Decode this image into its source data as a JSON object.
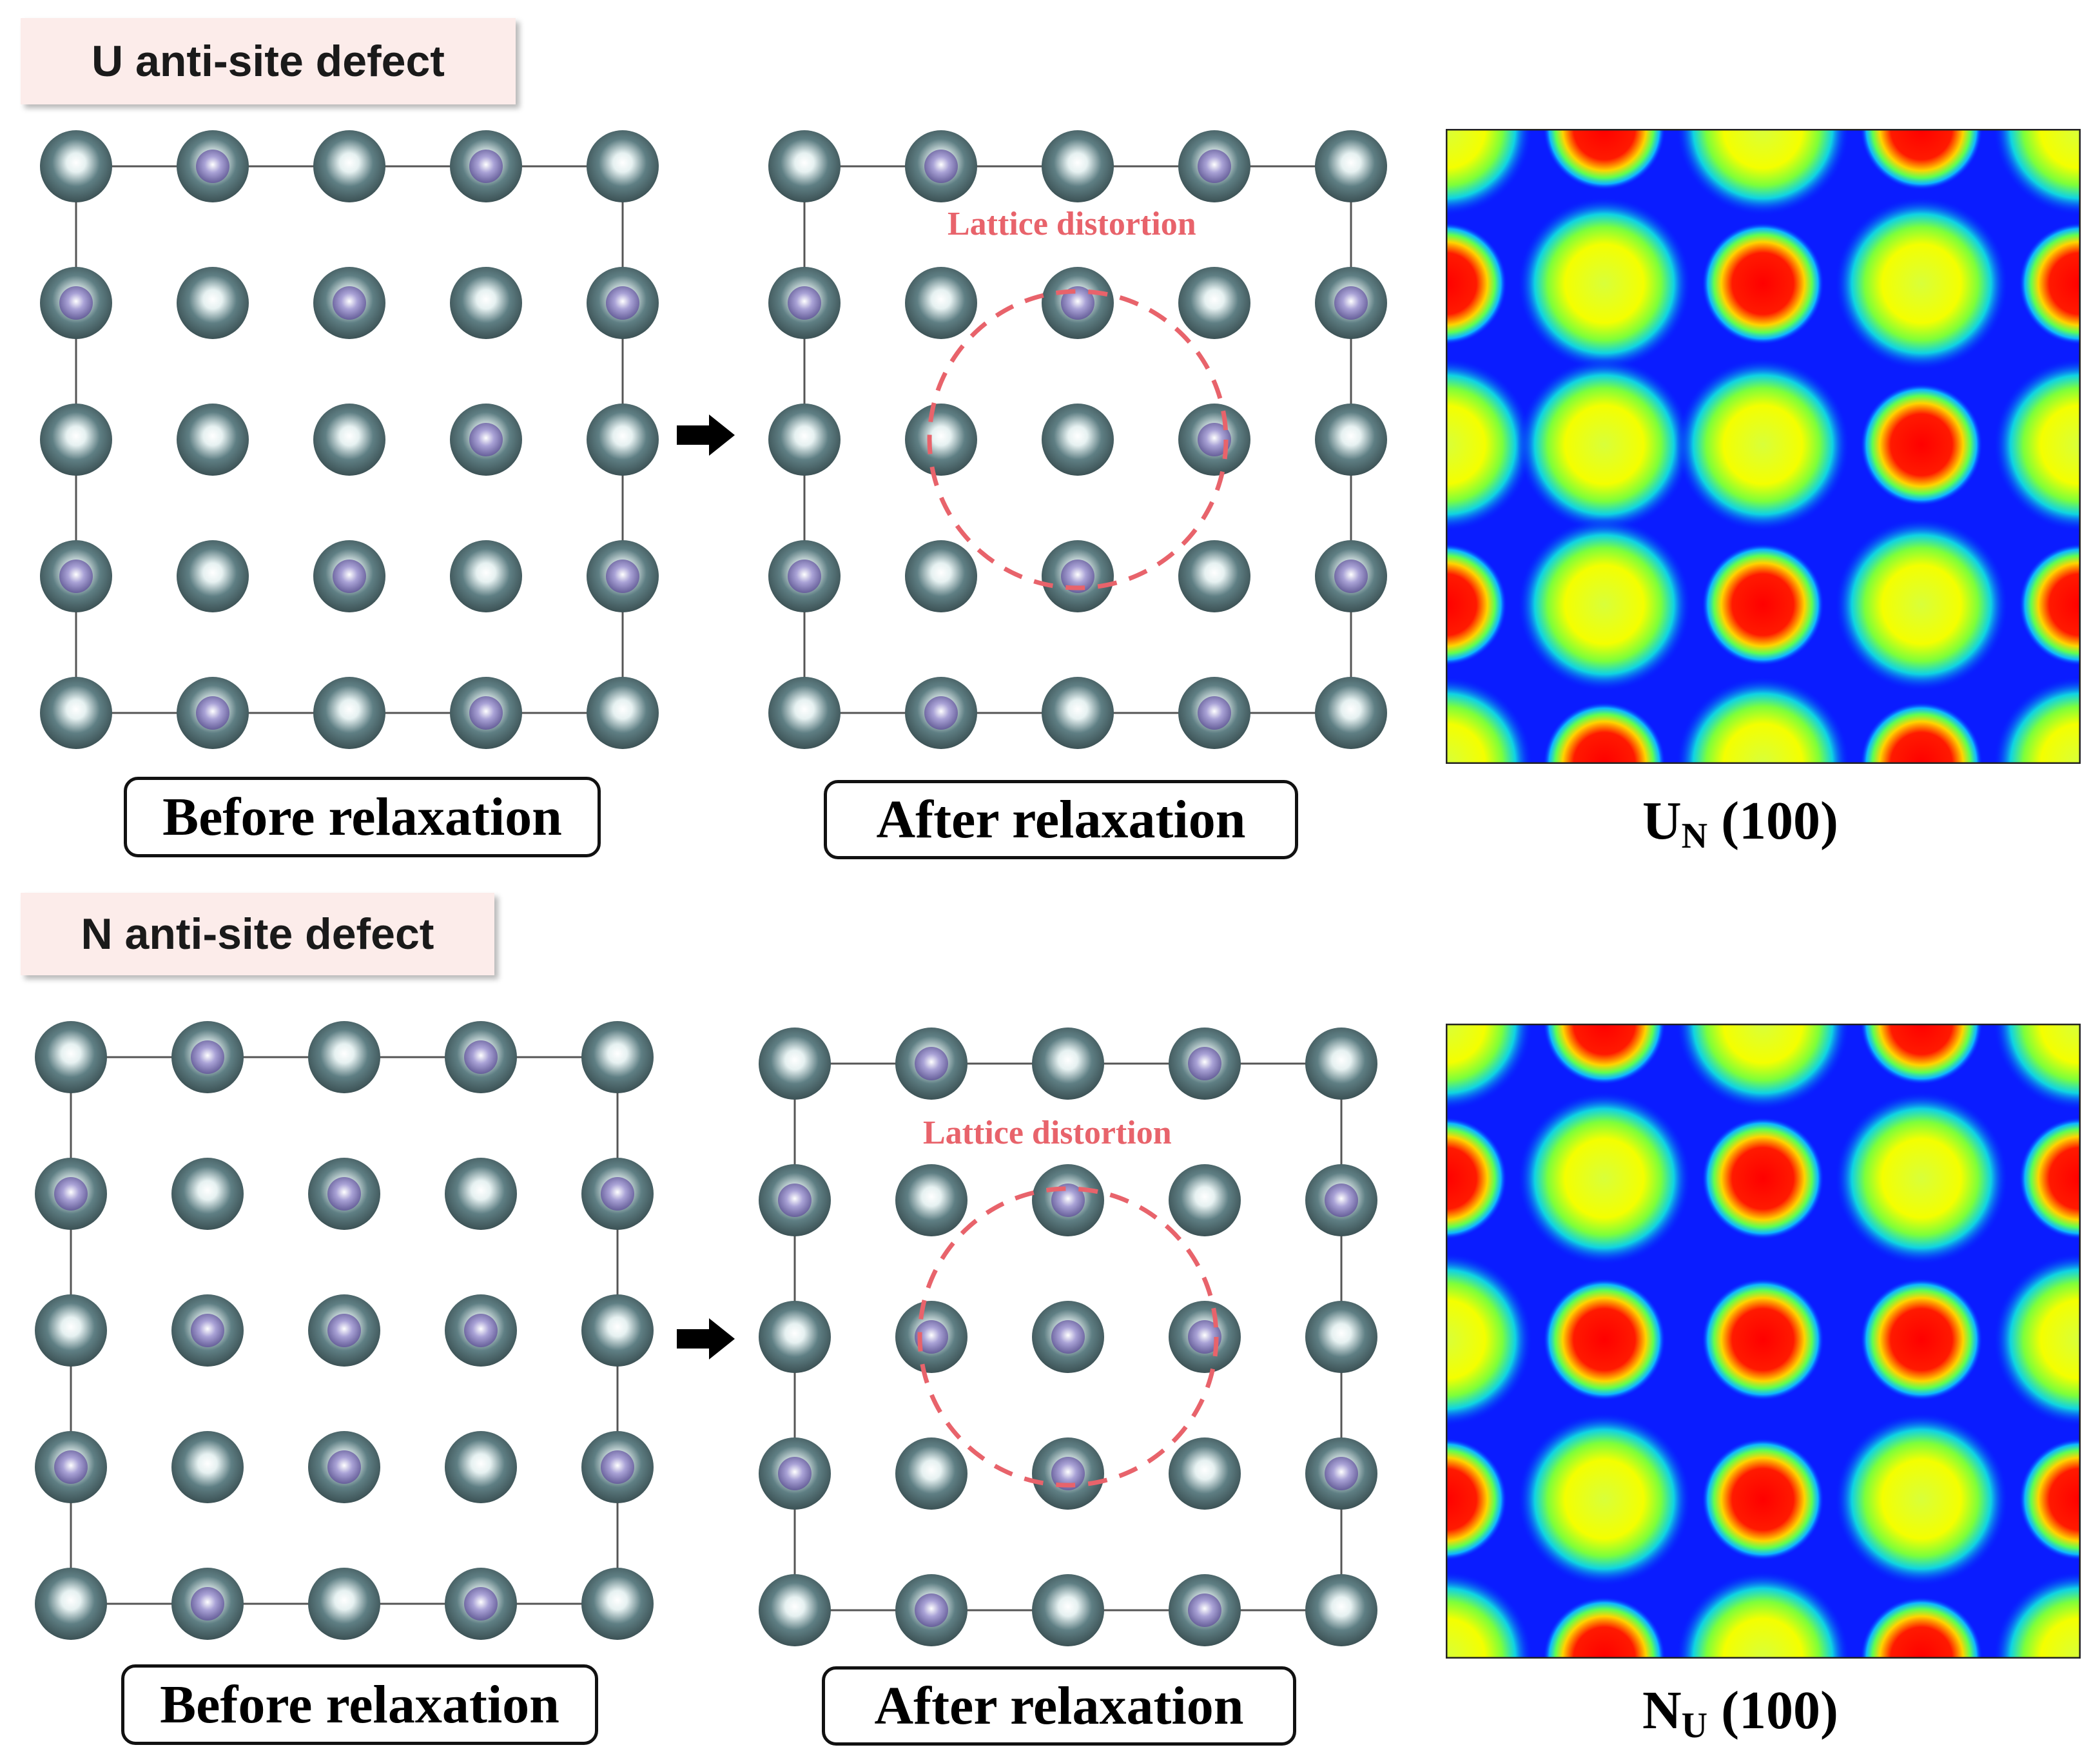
{
  "colors": {
    "u_atom": "#5f7f84",
    "n_atom": "#a9a2d6",
    "distortion": "#e8636b",
    "panel_title_bg": "#fcecea",
    "map_low": "#0018ff",
    "map_mid": "#ffff00",
    "map_high": "#ff0000"
  },
  "panels": [
    {
      "title": "U anti-site defect",
      "before_label": "Before relaxation",
      "after_label": "After relaxation",
      "distortion_label": "Lattice distortion",
      "map_label_main": "U",
      "map_label_sub": "N",
      "map_label_plane": "(100)",
      "arrow_icon": "right-arrow-icon",
      "before_grid": [
        [
          "U",
          "N",
          "U",
          "N",
          "U"
        ],
        [
          "N",
          "U",
          "N",
          "U",
          "N"
        ],
        [
          "U",
          "U",
          "U",
          "N",
          "U"
        ],
        [
          "N",
          "U",
          "N",
          "U",
          "N"
        ],
        [
          "U",
          "N",
          "U",
          "N",
          "U"
        ]
      ],
      "after_grid": [
        [
          "U",
          "N",
          "U",
          "N",
          "U"
        ],
        [
          "N",
          "U",
          "N",
          "U",
          "N"
        ],
        [
          "U",
          "U",
          "U",
          "N",
          "U"
        ],
        [
          "N",
          "U",
          "N",
          "U",
          "N"
        ],
        [
          "U",
          "N",
          "U",
          "N",
          "U"
        ]
      ]
    },
    {
      "title": "N anti-site defect",
      "before_label": "Before relaxation",
      "after_label": "After relaxation",
      "distortion_label": "Lattice distortion",
      "map_label_main": "N",
      "map_label_sub": "U",
      "map_label_plane": "(100)",
      "arrow_icon": "right-arrow-icon",
      "before_grid": [
        [
          "U",
          "N",
          "U",
          "N",
          "U"
        ],
        [
          "N",
          "U",
          "N",
          "U",
          "N"
        ],
        [
          "U",
          "N",
          "N",
          "N",
          "U"
        ],
        [
          "N",
          "U",
          "N",
          "U",
          "N"
        ],
        [
          "U",
          "N",
          "U",
          "N",
          "U"
        ]
      ],
      "after_grid": [
        [
          "U",
          "N",
          "U",
          "N",
          "U"
        ],
        [
          "N",
          "U",
          "N",
          "U",
          "N"
        ],
        [
          "U",
          "N",
          "N",
          "N",
          "U"
        ],
        [
          "N",
          "U",
          "N",
          "U",
          "N"
        ],
        [
          "U",
          "N",
          "U",
          "N",
          "U"
        ]
      ]
    }
  ]
}
